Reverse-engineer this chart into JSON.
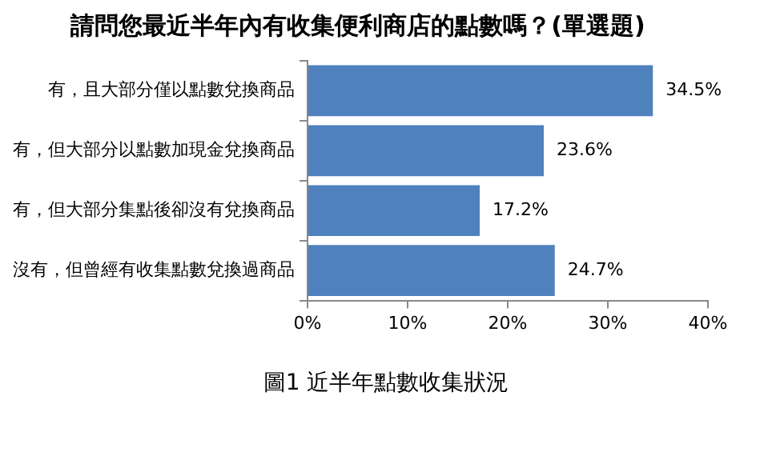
{
  "chart_data": {
    "type": "bar",
    "orientation": "horizontal",
    "title": "請問您最近半年內有收集便利商店的點數嗎？(單選題)",
    "categories": [
      "有，且大部分僅以點數兌換商品",
      "有，但大部分以點數加現金兌換商品",
      "有，但大部分集點後卻沒有兌換商品",
      "沒有，但曾經有收集點數兌換過商品"
    ],
    "values": [
      34.5,
      23.6,
      17.2,
      24.7
    ],
    "color": "#4f81bd",
    "value_labels": [
      "34.5%",
      "23.6%",
      "17.2%",
      "24.7%"
    ],
    "xlim": [
      0,
      40
    ],
    "xticks": [
      {
        "value": 0,
        "label": "0%"
      },
      {
        "value": 10,
        "label": "10%"
      },
      {
        "value": 20,
        "label": "20%"
      },
      {
        "value": 30,
        "label": "30%"
      },
      {
        "value": 40,
        "label": "40%"
      }
    ],
    "grid": false,
    "legend": false,
    "annotations": [
      "圖1 近半年點數收集狀況"
    ]
  }
}
